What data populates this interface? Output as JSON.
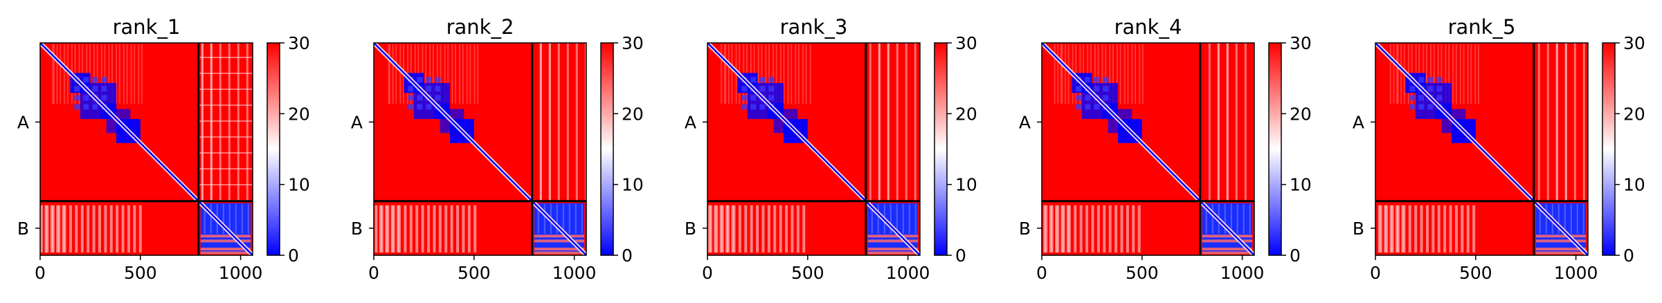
{
  "chart_data": {
    "type": "heatmap",
    "colormap": "bwr",
    "matrix_size": 1060,
    "boundary": 790,
    "chain_labels": [
      "A",
      "B"
    ],
    "chain_label_positions": [
      395,
      925
    ],
    "xticks": [
      0,
      500,
      1000
    ],
    "colorbar": {
      "ticks": [
        0,
        10,
        20,
        30
      ],
      "range": [
        0,
        30
      ]
    },
    "colors": {
      "high": "#ff0000",
      "low": "#0000ff",
      "mid": "#ffffff",
      "divider": "#000000",
      "frame": "#000000"
    },
    "panels": [
      {
        "title": "rank_1"
      },
      {
        "title": "rank_2"
      },
      {
        "title": "rank_3"
      },
      {
        "title": "rank_4"
      },
      {
        "title": "rank_5"
      }
    ]
  }
}
